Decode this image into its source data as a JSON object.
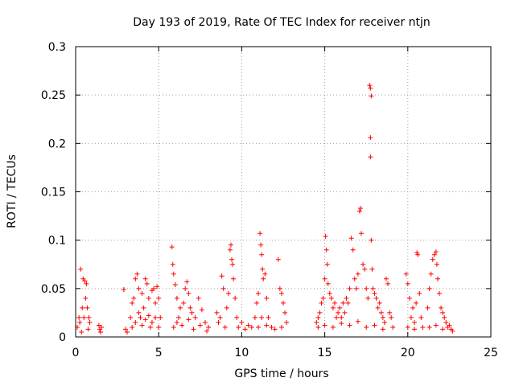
{
  "chart_data": {
    "type": "scatter",
    "title": "Day 193 of 2019, Rate Of TEC Index for receiver ntjn",
    "xlabel": "GPS time / hours",
    "ylabel": "ROTI / TECUs",
    "xlim": [
      0,
      25
    ],
    "ylim": [
      0,
      0.3
    ],
    "xticks": [
      0,
      5,
      10,
      15,
      20,
      25
    ],
    "xtick_labels": [
      "0",
      "5",
      "10",
      "15",
      "20",
      "25"
    ],
    "yticks": [
      0,
      0.05,
      0.1,
      0.15,
      0.2,
      0.25,
      0.3
    ],
    "ytick_labels": [
      "0",
      "0.05",
      "0.1",
      "0.15",
      "0.2",
      "0.25",
      "0.3"
    ],
    "grid": true,
    "marker": "+",
    "series": [
      {
        "name": "ROTI",
        "color": "#ff0000",
        "points": [
          [
            0.1,
            0.01
          ],
          [
            0.2,
            0.02
          ],
          [
            0.25,
            0.015
          ],
          [
            0.3,
            0.07
          ],
          [
            0.35,
            0.005
          ],
          [
            0.4,
            0.03
          ],
          [
            0.45,
            0.06
          ],
          [
            0.5,
            0.02
          ],
          [
            0.55,
            0.058
          ],
          [
            0.6,
            0.04
          ],
          [
            0.65,
            0.055
          ],
          [
            0.7,
            0.03
          ],
          [
            0.75,
            0.008
          ],
          [
            0.8,
            0.02
          ],
          [
            0.85,
            0.015
          ],
          [
            1.4,
            0.012
          ],
          [
            1.45,
            0.008
          ],
          [
            1.5,
            0.005
          ],
          [
            1.55,
            0.01
          ],
          [
            2.9,
            0.049
          ],
          [
            3.0,
            0.008
          ],
          [
            3.1,
            0.005
          ],
          [
            3.3,
            0.02
          ],
          [
            3.4,
            0.035
          ],
          [
            3.5,
            0.04
          ],
          [
            3.6,
            0.06
          ],
          [
            3.7,
            0.065
          ],
          [
            3.8,
            0.05
          ],
          [
            3.9,
            0.02
          ],
          [
            4.0,
            0.045
          ],
          [
            4.1,
            0.03
          ],
          [
            4.2,
            0.06
          ],
          [
            4.3,
            0.055
          ],
          [
            4.4,
            0.04
          ],
          [
            4.5,
            0.01
          ],
          [
            4.6,
            0.048
          ],
          [
            4.7,
            0.05
          ],
          [
            4.8,
            0.035
          ],
          [
            4.9,
            0.052
          ],
          [
            5.0,
            0.04
          ],
          [
            5.1,
            0.02
          ],
          [
            3.4,
            0.01
          ],
          [
            3.6,
            0.015
          ],
          [
            3.8,
            0.025
          ],
          [
            4.0,
            0.012
          ],
          [
            4.2,
            0.018
          ],
          [
            4.4,
            0.022
          ],
          [
            4.6,
            0.015
          ],
          [
            4.8,
            0.02
          ],
          [
            5.0,
            0.01
          ],
          [
            5.8,
            0.093
          ],
          [
            5.85,
            0.075
          ],
          [
            5.9,
            0.065
          ],
          [
            6.0,
            0.054
          ],
          [
            6.1,
            0.04
          ],
          [
            6.2,
            0.02
          ],
          [
            6.3,
            0.03
          ],
          [
            6.5,
            0.035
          ],
          [
            6.6,
            0.05
          ],
          [
            6.7,
            0.057
          ],
          [
            6.8,
            0.045
          ],
          [
            6.9,
            0.03
          ],
          [
            7.0,
            0.025
          ],
          [
            7.2,
            0.02
          ],
          [
            7.4,
            0.04
          ],
          [
            7.6,
            0.028
          ],
          [
            7.8,
            0.015
          ],
          [
            8.0,
            0.01
          ],
          [
            5.9,
            0.01
          ],
          [
            6.1,
            0.015
          ],
          [
            6.4,
            0.012
          ],
          [
            6.8,
            0.018
          ],
          [
            7.1,
            0.008
          ],
          [
            7.5,
            0.012
          ],
          [
            7.9,
            0.006
          ],
          [
            8.5,
            0.025
          ],
          [
            8.6,
            0.015
          ],
          [
            8.7,
            0.02
          ],
          [
            8.8,
            0.063
          ],
          [
            8.9,
            0.05
          ],
          [
            9.0,
            0.01
          ],
          [
            9.1,
            0.03
          ],
          [
            9.2,
            0.045
          ],
          [
            9.3,
            0.09
          ],
          [
            9.35,
            0.095
          ],
          [
            9.4,
            0.08
          ],
          [
            9.45,
            0.075
          ],
          [
            9.5,
            0.06
          ],
          [
            9.6,
            0.04
          ],
          [
            9.7,
            0.02
          ],
          [
            9.8,
            0.01
          ],
          [
            10.0,
            0.015
          ],
          [
            10.2,
            0.008
          ],
          [
            10.4,
            0.012
          ],
          [
            10.6,
            0.01
          ],
          [
            10.8,
            0.02
          ],
          [
            10.9,
            0.035
          ],
          [
            11.0,
            0.045
          ],
          [
            11.1,
            0.107
          ],
          [
            11.15,
            0.095
          ],
          [
            11.2,
            0.085
          ],
          [
            11.25,
            0.07
          ],
          [
            11.3,
            0.06
          ],
          [
            11.4,
            0.065
          ],
          [
            11.5,
            0.04
          ],
          [
            11.6,
            0.02
          ],
          [
            11.8,
            0.01
          ],
          [
            12.2,
            0.08
          ],
          [
            12.3,
            0.05
          ],
          [
            12.4,
            0.045
          ],
          [
            12.5,
            0.035
          ],
          [
            12.6,
            0.025
          ],
          [
            12.7,
            0.015
          ],
          [
            11.0,
            0.01
          ],
          [
            11.2,
            0.02
          ],
          [
            11.5,
            0.012
          ],
          [
            12.0,
            0.008
          ],
          [
            12.4,
            0.01
          ],
          [
            14.5,
            0.015
          ],
          [
            14.6,
            0.02
          ],
          [
            14.7,
            0.025
          ],
          [
            14.8,
            0.035
          ],
          [
            14.9,
            0.04
          ],
          [
            15.0,
            0.06
          ],
          [
            15.05,
            0.104
          ],
          [
            15.1,
            0.09
          ],
          [
            15.15,
            0.075
          ],
          [
            15.2,
            0.055
          ],
          [
            15.3,
            0.045
          ],
          [
            15.4,
            0.04
          ],
          [
            15.5,
            0.03
          ],
          [
            15.6,
            0.035
          ],
          [
            15.7,
            0.02
          ],
          [
            15.8,
            0.025
          ],
          [
            15.9,
            0.03
          ],
          [
            16.0,
            0.02
          ],
          [
            16.1,
            0.035
          ],
          [
            16.2,
            0.025
          ],
          [
            16.3,
            0.04
          ],
          [
            16.4,
            0.035
          ],
          [
            16.5,
            0.05
          ],
          [
            16.6,
            0.102
          ],
          [
            16.7,
            0.09
          ],
          [
            16.8,
            0.06
          ],
          [
            16.9,
            0.05
          ],
          [
            17.0,
            0.065
          ],
          [
            17.1,
            0.13
          ],
          [
            17.15,
            0.133
          ],
          [
            17.2,
            0.107
          ],
          [
            17.3,
            0.075
          ],
          [
            17.4,
            0.07
          ],
          [
            17.5,
            0.05
          ],
          [
            17.6,
            0.04
          ],
          [
            17.7,
            0.26
          ],
          [
            17.75,
            0.257
          ],
          [
            17.8,
            0.249
          ],
          [
            17.75,
            0.206
          ],
          [
            17.75,
            0.186
          ],
          [
            17.8,
            0.1
          ],
          [
            17.85,
            0.07
          ],
          [
            17.9,
            0.05
          ],
          [
            18.0,
            0.045
          ],
          [
            18.1,
            0.04
          ],
          [
            18.2,
            0.03
          ],
          [
            18.3,
            0.035
          ],
          [
            18.4,
            0.025
          ],
          [
            18.5,
            0.02
          ],
          [
            18.6,
            0.015
          ],
          [
            18.7,
            0.06
          ],
          [
            18.8,
            0.055
          ],
          [
            18.9,
            0.025
          ],
          [
            19.0,
            0.02
          ],
          [
            19.1,
            0.01
          ],
          [
            14.6,
            0.01
          ],
          [
            15.0,
            0.012
          ],
          [
            15.5,
            0.01
          ],
          [
            16.0,
            0.014
          ],
          [
            16.5,
            0.012
          ],
          [
            17.0,
            0.016
          ],
          [
            17.5,
            0.01
          ],
          [
            18.0,
            0.012
          ],
          [
            18.5,
            0.008
          ],
          [
            19.9,
            0.065
          ],
          [
            20.0,
            0.055
          ],
          [
            20.1,
            0.04
          ],
          [
            20.2,
            0.02
          ],
          [
            20.3,
            0.03
          ],
          [
            20.4,
            0.015
          ],
          [
            20.5,
            0.035
          ],
          [
            20.55,
            0.087
          ],
          [
            20.6,
            0.085
          ],
          [
            20.7,
            0.045
          ],
          [
            20.8,
            0.02
          ],
          [
            20.9,
            0.01
          ],
          [
            21.2,
            0.03
          ],
          [
            21.3,
            0.05
          ],
          [
            21.4,
            0.065
          ],
          [
            21.5,
            0.08
          ],
          [
            21.6,
            0.085
          ],
          [
            21.7,
            0.088
          ],
          [
            21.75,
            0.075
          ],
          [
            21.8,
            0.06
          ],
          [
            21.9,
            0.045
          ],
          [
            22.0,
            0.03
          ],
          [
            22.1,
            0.025
          ],
          [
            22.2,
            0.02
          ],
          [
            22.3,
            0.015
          ],
          [
            22.4,
            0.01
          ],
          [
            22.5,
            0.012
          ],
          [
            22.6,
            0.008
          ],
          [
            22.7,
            0.006
          ],
          [
            20.0,
            0.01
          ],
          [
            20.4,
            0.008
          ],
          [
            21.3,
            0.01
          ],
          [
            21.7,
            0.012
          ],
          [
            22.1,
            0.008
          ]
        ]
      }
    ]
  }
}
